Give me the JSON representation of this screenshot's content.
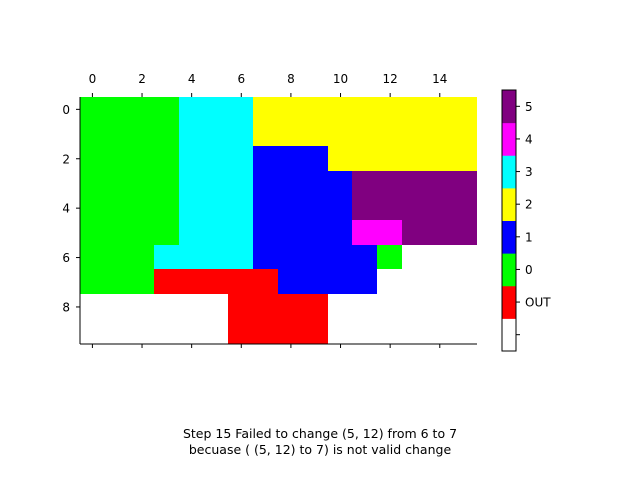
{
  "chart_data": {
    "type": "heatmap",
    "x_ticks": [
      "0",
      "2",
      "4",
      "6",
      "8",
      "10",
      "12",
      "14"
    ],
    "y_ticks": [
      "0",
      "2",
      "4",
      "6",
      "8"
    ],
    "x_range": [
      -0.5,
      15.5
    ],
    "y_range": [
      -0.5,
      9.5
    ],
    "x_axis_position": "top",
    "grid": false,
    "colorbar": {
      "position": "right",
      "entries": [
        {
          "label": "",
          "color": "#ffffff"
        },
        {
          "label": "OUT",
          "color": "#ff0000"
        },
        {
          "label": "0",
          "color": "#00ff00"
        },
        {
          "label": "1",
          "color": "#0000ff"
        },
        {
          "label": "2",
          "color": "#ffff00"
        },
        {
          "label": "3",
          "color": "#00ffff"
        },
        {
          "label": "4",
          "color": "#ff00ff"
        },
        {
          "label": "5",
          "color": "#800080"
        }
      ]
    },
    "palette": {
      "W": "#ffffff",
      "R": "#ff0000",
      "0": "#00ff00",
      "1": "#0000ff",
      "2": "#ffff00",
      "3": "#00ffff",
      "4": "#ff00ff",
      "5": "#800080"
    },
    "grid_rows": [
      "0000333222222222",
      "0000333222222222",
      "0000333111222222",
      "0000333111155555",
      "0000333111155555",
      "0000333111144555",
      "0003333111110WWWW",
      "000RRRRR1111WWWW",
      "WWWWWWRRRRWWWWWW",
      "WWWWWWRRRRWWWWWW"
    ]
  },
  "caption": {
    "line1": "Step 15 Failed to change (5, 12) from 6 to 7",
    "line2": "becuase ( (5, 12) to 7) is not valid change"
  }
}
